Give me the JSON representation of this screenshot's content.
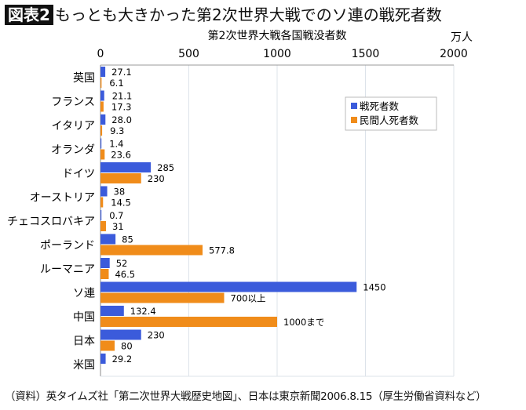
{
  "header": {
    "badge": "図表2",
    "title": "もっとも大きかった第2次世界大戦でのソ連の戦死者数"
  },
  "footer": {
    "source": "（資料）英タイムズ社「第二次世界大戦歴史地図」、日本は東京新聞2006.8.15（厚生労働省資料など）"
  },
  "chart_data": {
    "type": "bar",
    "orientation": "horizontal",
    "title": "第2次世界大戦各国戦没者数",
    "unit": "万人",
    "xlim": [
      0,
      2000
    ],
    "ticks": [
      0,
      500,
      1000,
      1500,
      2000
    ],
    "grid": true,
    "legend_position": "right",
    "categories": [
      "英国",
      "フランス",
      "イタリア",
      "オランダ",
      "ドイツ",
      "オーストリア",
      "チェコスロバキア",
      "ポーランド",
      "ルーマニア",
      "ソ連",
      "中国",
      "日本",
      "米国"
    ],
    "series": [
      {
        "name": "戦死者数",
        "color": "#3b5bdb",
        "values": [
          27.1,
          21.1,
          28.0,
          1.4,
          285,
          38,
          0.7,
          85,
          52,
          1450,
          132.4,
          230,
          29.2
        ],
        "labels": [
          "27.1",
          "21.1",
          "28.0",
          "1.4",
          "285",
          "38",
          "0.7",
          "85",
          "52",
          "1450",
          "132.4",
          "230",
          "29.2"
        ]
      },
      {
        "name": "民間人死者数",
        "color": "#f08c1a",
        "values": [
          6.1,
          17.3,
          9.3,
          23.6,
          230,
          14.5,
          31,
          577.8,
          46.5,
          700,
          1000,
          80,
          null
        ],
        "labels": [
          "6.1",
          "17.3",
          "9.3",
          "23.6",
          "230",
          "14.5",
          "31",
          "577.8",
          "46.5",
          "700以上",
          "1000まで",
          "80",
          null
        ]
      }
    ]
  }
}
